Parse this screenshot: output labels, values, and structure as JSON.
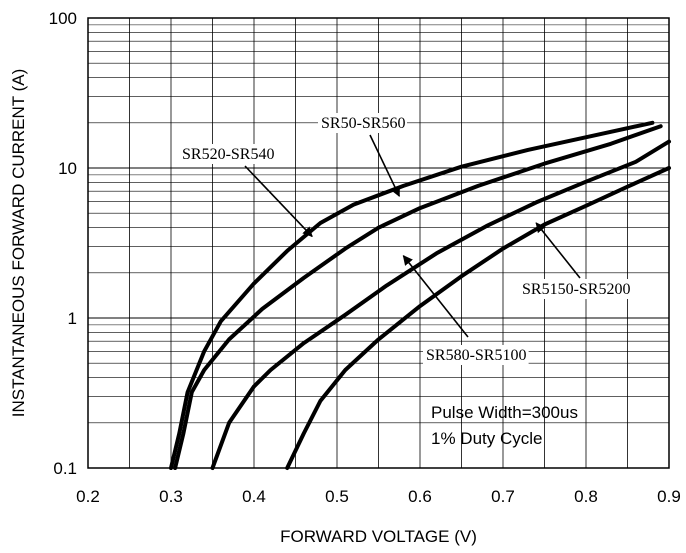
{
  "chart_data": {
    "type": "line",
    "xlabel": "FORWARD VOLTAGE (V)",
    "ylabel": "INSTANTANEOUS FORWARD CURRENT (A)",
    "xlim": [
      0.2,
      0.9
    ],
    "ylim": [
      0.1,
      100
    ],
    "yscale": "log",
    "grid": true,
    "x_ticks": [
      0.2,
      0.3,
      0.4,
      0.5,
      0.6,
      0.7,
      0.8,
      0.9
    ],
    "x_tick_labels": [
      "0.2",
      "0.3",
      "0.4",
      "0.5",
      "0.6",
      "0.7",
      "0.8",
      "0.9"
    ],
    "y_ticks": [
      0.1,
      1,
      10,
      100
    ],
    "y_tick_labels": [
      "0.1",
      "1",
      "10",
      "100"
    ],
    "series": [
      {
        "name": "SR520-SR540",
        "x": [
          0.3,
          0.31,
          0.32,
          0.34,
          0.36,
          0.4,
          0.44,
          0.48,
          0.52,
          0.58,
          0.65,
          0.73,
          0.81,
          0.88
        ],
        "y": [
          0.1,
          0.17,
          0.32,
          0.6,
          0.95,
          1.7,
          2.8,
          4.3,
          5.7,
          7.6,
          10.2,
          13.2,
          16.5,
          20
        ]
      },
      {
        "name": "SR50-SR560",
        "x": [
          0.305,
          0.315,
          0.325,
          0.34,
          0.37,
          0.41,
          0.46,
          0.51,
          0.55,
          0.6,
          0.67,
          0.75,
          0.83,
          0.89
        ],
        "y": [
          0.1,
          0.17,
          0.32,
          0.45,
          0.72,
          1.15,
          1.85,
          2.9,
          4.0,
          5.4,
          7.6,
          10.7,
          14.5,
          19
        ]
      },
      {
        "name": "SR580-SR5100",
        "x": [
          0.35,
          0.37,
          0.4,
          0.42,
          0.46,
          0.51,
          0.56,
          0.62,
          0.68,
          0.74,
          0.8,
          0.86,
          0.9
        ],
        "y": [
          0.1,
          0.2,
          0.35,
          0.45,
          0.68,
          1.05,
          1.65,
          2.7,
          4.1,
          5.9,
          8.1,
          11.0,
          15
        ]
      },
      {
        "name": "SR5150-SR5200",
        "x": [
          0.44,
          0.46,
          0.48,
          0.51,
          0.55,
          0.6,
          0.65,
          0.7,
          0.75,
          0.8,
          0.85,
          0.9
        ],
        "y": [
          0.1,
          0.17,
          0.28,
          0.45,
          0.72,
          1.2,
          1.9,
          2.9,
          4.2,
          5.6,
          7.5,
          10
        ]
      }
    ],
    "annotations": [
      {
        "series": "SR520-SR540",
        "text": "SR520-SR540",
        "arrow_to": [
          0.47,
          3.5
        ]
      },
      {
        "series": "SR50-SR560",
        "text": "SR50-SR560",
        "arrow_to": [
          0.575,
          6.5
        ]
      },
      {
        "series": "SR580-SR5100",
        "text": "SR580-SR5100",
        "arrow_to": [
          0.58,
          2.6
        ]
      },
      {
        "series": "SR5150-SR5200",
        "text": "SR5150-SR5200",
        "arrow_to": [
          0.74,
          4.3
        ]
      }
    ],
    "note": {
      "line1": "Pulse Width=300us",
      "line2": "1% Duty Cycle"
    }
  }
}
